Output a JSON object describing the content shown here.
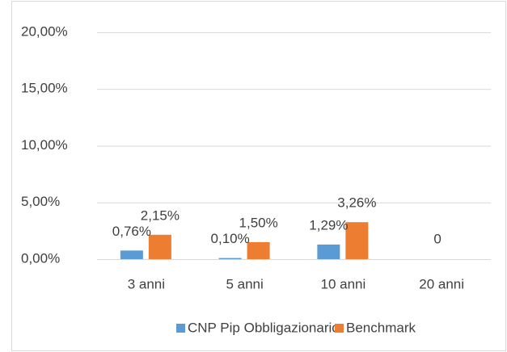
{
  "chart_data": {
    "type": "bar",
    "categories": [
      "3 anni",
      "5 anni",
      "10 anni",
      "20 anni"
    ],
    "series": [
      {
        "name": "CNP Pip Obbligazionario",
        "color": "#5b9bd5",
        "values": [
          0.76,
          0.1,
          1.29,
          0
        ],
        "value_labels": [
          "0,76%",
          "0,10%",
          "1,29%",
          "0"
        ]
      },
      {
        "name": "Benchmark",
        "color": "#ed7d31",
        "values": [
          2.15,
          1.5,
          3.26,
          null
        ],
        "value_labels": [
          "2,15%",
          "1,50%",
          "3,26%",
          null
        ]
      }
    ],
    "ylim": [
      0,
      20
    ],
    "yticks": [
      {
        "value": 0,
        "label": "0,00%"
      },
      {
        "value": 5,
        "label": "5,00%"
      },
      {
        "value": 10,
        "label": "10,00%"
      },
      {
        "value": 15,
        "label": "15,00%"
      },
      {
        "value": 20,
        "label": "20,00%"
      }
    ],
    "grid": true,
    "legend": "bottom"
  }
}
